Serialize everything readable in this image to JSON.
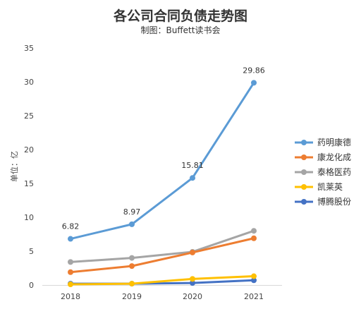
{
  "chart_data": {
    "type": "line",
    "title": "各公司合同负债走势图",
    "subtitle": "制图：Buffett读书会",
    "ylabel": "单位：亿",
    "xlabel": "",
    "categories": [
      "2018",
      "2019",
      "2020",
      "2021"
    ],
    "ylim": [
      0,
      35
    ],
    "yticks": [
      0,
      5,
      10,
      15,
      20,
      25,
      30,
      35
    ],
    "grid": false,
    "legend_position": "right",
    "series": [
      {
        "name": "药明康德",
        "color": "#5b9bd5",
        "values": [
          6.82,
          8.97,
          15.81,
          29.86
        ],
        "labels": [
          "6.82",
          "8.97",
          "15.81",
          "29.86"
        ]
      },
      {
        "name": "康龙化成",
        "color": "#ed7d31",
        "values": [
          1.9,
          2.8,
          4.8,
          6.9
        ]
      },
      {
        "name": "泰格医药",
        "color": "#a5a5a5",
        "values": [
          3.4,
          4.0,
          4.9,
          8.0
        ]
      },
      {
        "name": "凯莱英",
        "color": "#ffc000",
        "values": [
          0.1,
          0.2,
          0.9,
          1.3
        ]
      },
      {
        "name": "博腾股份",
        "color": "#4472c4",
        "values": [
          0.2,
          0.2,
          0.3,
          0.7
        ]
      }
    ]
  }
}
